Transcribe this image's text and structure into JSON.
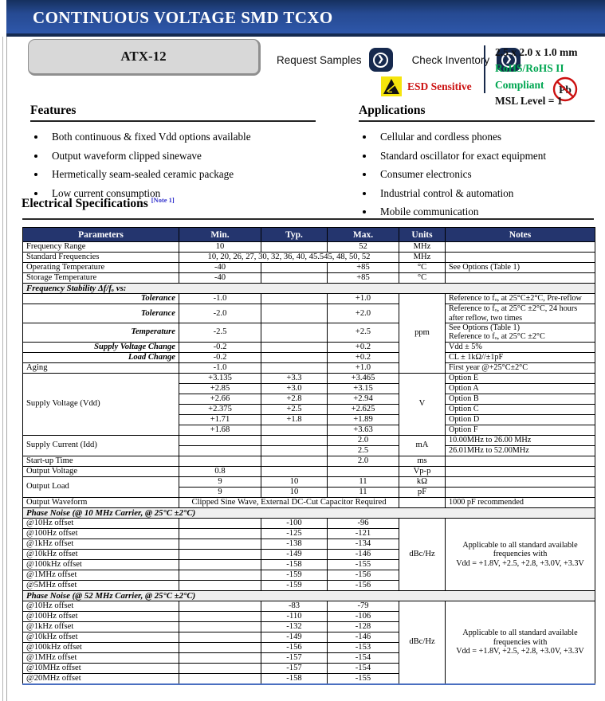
{
  "header": {
    "title": "CONTINUOUS VOLTAGE SMD TCXO"
  },
  "product": {
    "model": "ATX-12",
    "request_samples_label": "Request Samples",
    "check_inventory_label": "Check Inventory",
    "esd_label": "ESD Sensitive",
    "pb_label": "Pb",
    "size": "2.5 x 2.0 x 1.0 mm",
    "rohs": "RoHS/RoHS II Compliant",
    "msl": "MSL Level = 1",
    "rohs_color": "#00A651",
    "esd_color": "#CC1111"
  },
  "icons": {
    "chevron": "❯"
  },
  "features": {
    "title": "Features",
    "items": [
      "Both continuous & fixed Vdd options available",
      "Output waveform clipped sinewave",
      "Hermetically seam-sealed ceramic package",
      "Low current consumption"
    ]
  },
  "applications": {
    "title": "Applications",
    "items": [
      "Cellular and cordless phones",
      "Standard oscillator for exact equipment",
      "Consumer electronics",
      "Industrial control & automation",
      "Mobile communication"
    ]
  },
  "spec": {
    "title": "Electrical Specifications",
    "note_ref": "[Note 1]",
    "note_color": "#3333CC",
    "columns": [
      "Parameters",
      "Min.",
      "Typ.",
      "Max.",
      "Units",
      "Notes"
    ],
    "rows": [
      {
        "cells": [
          {
            "t": "Frequency Range",
            "c": "p"
          },
          {
            "t": "10",
            "c": "n"
          },
          {
            "t": "",
            "c": "n"
          },
          {
            "t": "52",
            "c": "n"
          },
          {
            "t": "MHz",
            "c": "u"
          },
          {
            "t": "",
            "c": "t"
          }
        ]
      },
      {
        "cells": [
          {
            "t": "Standard Frequencies",
            "c": "p"
          },
          {
            "t": "10, 20, 26, 27, 30, 32, 36, 40, 45.545, 48, 50, 52",
            "c": "n",
            "cs": 3
          },
          {
            "t": "MHz",
            "c": "u"
          },
          {
            "t": "",
            "c": "t"
          }
        ]
      },
      {
        "cells": [
          {
            "t": "Operating Temperature",
            "c": "p"
          },
          {
            "t": "-40",
            "c": "n"
          },
          {
            "t": "",
            "c": "n"
          },
          {
            "t": "+85",
            "c": "n"
          },
          {
            "t": "°C",
            "c": "u"
          },
          {
            "t": "See Options (Table 1)",
            "c": "t"
          }
        ]
      },
      {
        "cells": [
          {
            "t": "Storage Temperature",
            "c": "p"
          },
          {
            "t": "-40",
            "c": "n"
          },
          {
            "t": "",
            "c": "n"
          },
          {
            "t": "+85",
            "c": "n"
          },
          {
            "t": "°C",
            "c": "u"
          },
          {
            "t": "",
            "c": "t"
          }
        ]
      },
      {
        "cells": [
          {
            "t": "Frequency Stability Δf/fₒ vs:",
            "c": "sec",
            "cs": 6
          }
        ]
      },
      {
        "cells": [
          {
            "t": "Tolerance",
            "c": "sp nbb"
          },
          {
            "t": "-1.0",
            "c": "n"
          },
          {
            "t": "",
            "c": "n"
          },
          {
            "t": "+1.0",
            "c": "n"
          },
          {
            "t": "ppm",
            "c": "u",
            "rs": 6
          },
          {
            "t": "Reference to fₒ, at 25°C±2°C, Pre-reflow",
            "c": "t"
          }
        ]
      },
      {
        "cells": [
          {
            "t": "Tolerance",
            "c": "sp nbt nbb"
          },
          {
            "t": "-2.0",
            "c": "n"
          },
          {
            "t": "",
            "c": "n"
          },
          {
            "t": "+2.0",
            "c": "n"
          },
          {
            "t": "Reference to fₒ, at 25°C ±2°C, 24 hours\nafter reflow, two times",
            "c": "t"
          }
        ]
      },
      {
        "cells": [
          {
            "t": "Temperature",
            "c": "sp nbt nbb"
          },
          {
            "t": "-2.5",
            "c": "n"
          },
          {
            "t": "",
            "c": "n"
          },
          {
            "t": "+2.5",
            "c": "n"
          },
          {
            "t": "See Options (Table 1)\nReference to fₒ, at 25°C ±2°C",
            "c": "t"
          }
        ]
      },
      {
        "cells": [
          {
            "t": "Supply Voltage Change",
            "c": "sp nbt nbb"
          },
          {
            "t": "-0.2",
            "c": "n"
          },
          {
            "t": "",
            "c": "n"
          },
          {
            "t": "+0.2",
            "c": "n"
          },
          {
            "t": "Vdd ± 5%",
            "c": "t"
          }
        ]
      },
      {
        "cells": [
          {
            "t": "Load Change",
            "c": "sp nbt"
          },
          {
            "t": "-0.2",
            "c": "n"
          },
          {
            "t": "",
            "c": "n"
          },
          {
            "t": "+0.2",
            "c": "n"
          },
          {
            "t": "CL ± 1kΩ//±1pF",
            "c": "t"
          }
        ]
      },
      {
        "cells": [
          {
            "t": "Aging",
            "c": "p"
          },
          {
            "t": "-1.0",
            "c": "n"
          },
          {
            "t": "",
            "c": "n"
          },
          {
            "t": "+1.0",
            "c": "n"
          },
          {
            "t": "First year @+25°C±2°C",
            "c": "t"
          }
        ]
      },
      {
        "cells": [
          {
            "t": "Supply Voltage (Vdd)",
            "c": "p",
            "rs": 6
          },
          {
            "t": "+3.135",
            "c": "n"
          },
          {
            "t": "+3.3",
            "c": "n"
          },
          {
            "t": "+3.465",
            "c": "n"
          },
          {
            "t": "V",
            "c": "u",
            "rs": 6
          },
          {
            "t": "Option E",
            "c": "t"
          }
        ]
      },
      {
        "cells": [
          {
            "t": "+2.85",
            "c": "n"
          },
          {
            "t": "+3.0",
            "c": "n"
          },
          {
            "t": "+3.15",
            "c": "n"
          },
          {
            "t": "Option A",
            "c": "t"
          }
        ]
      },
      {
        "cells": [
          {
            "t": "+2.66",
            "c": "n"
          },
          {
            "t": "+2.8",
            "c": "n"
          },
          {
            "t": "+2.94",
            "c": "n"
          },
          {
            "t": "Option B",
            "c": "t"
          }
        ]
      },
      {
        "cells": [
          {
            "t": "+2.375",
            "c": "n"
          },
          {
            "t": "+2.5",
            "c": "n"
          },
          {
            "t": "+2.625",
            "c": "n"
          },
          {
            "t": "Option C",
            "c": "t"
          }
        ]
      },
      {
        "cells": [
          {
            "t": "+1.71",
            "c": "n"
          },
          {
            "t": "+1.8",
            "c": "n"
          },
          {
            "t": "+1.89",
            "c": "n"
          },
          {
            "t": "Option D",
            "c": "t"
          }
        ]
      },
      {
        "cells": [
          {
            "t": "+1.68",
            "c": "n"
          },
          {
            "t": "",
            "c": "n"
          },
          {
            "t": "+3.63",
            "c": "n"
          },
          {
            "t": "Option F",
            "c": "t"
          }
        ]
      },
      {
        "cells": [
          {
            "t": "Supply Current (Idd)",
            "c": "p",
            "rs": 2
          },
          {
            "t": "",
            "c": "n"
          },
          {
            "t": "",
            "c": "n"
          },
          {
            "t": "2.0",
            "c": "n"
          },
          {
            "t": "mA",
            "c": "u",
            "rs": 2
          },
          {
            "t": "10.00MHz to 26.00 MHz",
            "c": "t"
          }
        ]
      },
      {
        "cells": [
          {
            "t": "",
            "c": "n"
          },
          {
            "t": "",
            "c": "n"
          },
          {
            "t": "2.5",
            "c": "n"
          },
          {
            "t": "26.01MHz to 52.00MHz",
            "c": "t"
          }
        ]
      },
      {
        "cells": [
          {
            "t": "Start-up Time",
            "c": "p"
          },
          {
            "t": "",
            "c": "n"
          },
          {
            "t": "",
            "c": "n"
          },
          {
            "t": "2.0",
            "c": "n"
          },
          {
            "t": "ms",
            "c": "u"
          },
          {
            "t": "",
            "c": "t"
          }
        ]
      },
      {
        "cells": [
          {
            "t": "Output Voltage",
            "c": "p"
          },
          {
            "t": "0.8",
            "c": "n"
          },
          {
            "t": "",
            "c": "n"
          },
          {
            "t": "",
            "c": "n"
          },
          {
            "t": "Vp-p",
            "c": "u"
          },
          {
            "t": "",
            "c": "t"
          }
        ]
      },
      {
        "cells": [
          {
            "t": "Output Load",
            "c": "p",
            "rs": 2
          },
          {
            "t": "9",
            "c": "n"
          },
          {
            "t": "10",
            "c": "n"
          },
          {
            "t": "11",
            "c": "n"
          },
          {
            "t": "kΩ",
            "c": "u"
          },
          {
            "t": "",
            "c": "t"
          }
        ]
      },
      {
        "cells": [
          {
            "t": "9",
            "c": "n"
          },
          {
            "t": "10",
            "c": "n"
          },
          {
            "t": "11",
            "c": "n"
          },
          {
            "t": "pF",
            "c": "u"
          },
          {
            "t": "",
            "c": "t"
          }
        ]
      },
      {
        "cells": [
          {
            "t": "Output Waveform",
            "c": "p"
          },
          {
            "t": "Clipped Sine Wave, External DC-Cut Capacitor Required",
            "c": "n",
            "cs": 3
          },
          {
            "t": "",
            "c": "u"
          },
          {
            "t": "1000 pF recommended",
            "c": "t"
          }
        ]
      },
      {
        "cells": [
          {
            "t": "Phase Noise (@ 10 MHz Carrier, @ 25°C ±2°C)",
            "c": "sec",
            "cs": 6
          }
        ]
      },
      {
        "cells": [
          {
            "t": "@10Hz offset",
            "c": "p"
          },
          {
            "t": "",
            "c": "n"
          },
          {
            "t": "-100",
            "c": "n"
          },
          {
            "t": "-96",
            "c": "n"
          },
          {
            "t": "dBc/Hz",
            "c": "u",
            "rs": 7
          },
          {
            "t": "Applicable to all standard available\nfrequencies with\nVdd = +1.8V, +2.5, +2.8, +3.0V, +3.3V",
            "c": "tc",
            "rs": 7
          }
        ]
      },
      {
        "cells": [
          {
            "t": "@100Hz offset",
            "c": "p"
          },
          {
            "t": "",
            "c": "n"
          },
          {
            "t": "-125",
            "c": "n"
          },
          {
            "t": "-121",
            "c": "n"
          }
        ]
      },
      {
        "cells": [
          {
            "t": "@1kHz offset",
            "c": "p"
          },
          {
            "t": "",
            "c": "n"
          },
          {
            "t": "-138",
            "c": "n"
          },
          {
            "t": "-134",
            "c": "n"
          }
        ]
      },
      {
        "cells": [
          {
            "t": "@10kHz offset",
            "c": "p"
          },
          {
            "t": "",
            "c": "n"
          },
          {
            "t": "-149",
            "c": "n"
          },
          {
            "t": "-146",
            "c": "n"
          }
        ]
      },
      {
        "cells": [
          {
            "t": "@100kHz offset",
            "c": "p"
          },
          {
            "t": "",
            "c": "n"
          },
          {
            "t": "-158",
            "c": "n"
          },
          {
            "t": "-155",
            "c": "n"
          }
        ]
      },
      {
        "cells": [
          {
            "t": "@1MHz offset",
            "c": "p"
          },
          {
            "t": "",
            "c": "n"
          },
          {
            "t": "-159",
            "c": "n"
          },
          {
            "t": "-156",
            "c": "n"
          }
        ]
      },
      {
        "cells": [
          {
            "t": "@5MHz offset",
            "c": "p"
          },
          {
            "t": "",
            "c": "n"
          },
          {
            "t": "-159",
            "c": "n"
          },
          {
            "t": "-156",
            "c": "n"
          }
        ]
      },
      {
        "cells": [
          {
            "t": "Phase Noise (@ 52 MHz Carrier, @ 25°C ±2°C)",
            "c": "sec",
            "cs": 6
          }
        ]
      },
      {
        "cells": [
          {
            "t": "@10Hz offset",
            "c": "p"
          },
          {
            "t": "",
            "c": "n"
          },
          {
            "t": "-83",
            "c": "n"
          },
          {
            "t": "-79",
            "c": "n"
          },
          {
            "t": "dBc/Hz",
            "c": "u",
            "rs": 8
          },
          {
            "t": "Applicable to all standard available\nfrequencies with\nVdd = +1.8V, +2.5, +2.8, +3.0V, +3.3V",
            "c": "tc",
            "rs": 8
          }
        ]
      },
      {
        "cells": [
          {
            "t": "@100Hz offset",
            "c": "p"
          },
          {
            "t": "",
            "c": "n"
          },
          {
            "t": "-110",
            "c": "n"
          },
          {
            "t": "-106",
            "c": "n"
          }
        ]
      },
      {
        "cells": [
          {
            "t": "@1kHz offset",
            "c": "p"
          },
          {
            "t": "",
            "c": "n"
          },
          {
            "t": "-132",
            "c": "n"
          },
          {
            "t": "-128",
            "c": "n"
          }
        ]
      },
      {
        "cells": [
          {
            "t": "@10kHz offset",
            "c": "p"
          },
          {
            "t": "",
            "c": "n"
          },
          {
            "t": "-149",
            "c": "n"
          },
          {
            "t": "-146",
            "c": "n"
          }
        ]
      },
      {
        "cells": [
          {
            "t": "@100kHz offset",
            "c": "p"
          },
          {
            "t": "",
            "c": "n"
          },
          {
            "t": "-156",
            "c": "n"
          },
          {
            "t": "-153",
            "c": "n"
          }
        ]
      },
      {
        "cells": [
          {
            "t": "@1MHz offset",
            "c": "p"
          },
          {
            "t": "",
            "c": "n"
          },
          {
            "t": "-157",
            "c": "n"
          },
          {
            "t": "-154",
            "c": "n"
          }
        ]
      },
      {
        "cells": [
          {
            "t": "@10MHz offset",
            "c": "p"
          },
          {
            "t": "",
            "c": "n"
          },
          {
            "t": "-157",
            "c": "n"
          },
          {
            "t": "-154",
            "c": "n"
          }
        ]
      },
      {
        "cells": [
          {
            "t": "@20MHz offset",
            "c": "p"
          },
          {
            "t": "",
            "c": "n"
          },
          {
            "t": "-158",
            "c": "n"
          },
          {
            "t": "-155",
            "c": "n"
          }
        ]
      }
    ]
  }
}
